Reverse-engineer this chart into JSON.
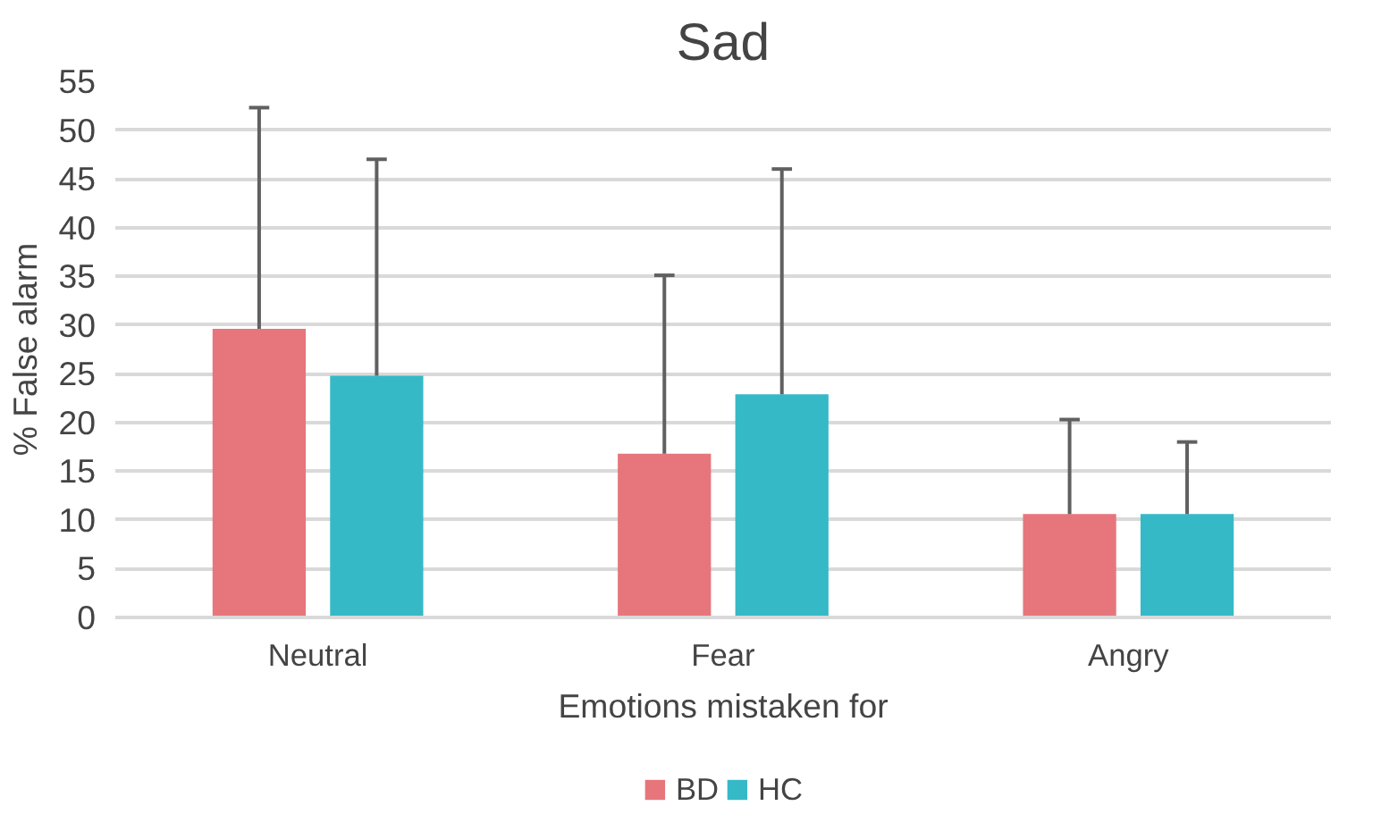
{
  "chart_data": {
    "type": "bar",
    "title": "Sad",
    "xlabel": "Emotions mistaken for",
    "ylabel": "% False alarm",
    "categories": [
      "Neutral",
      "Fear",
      "Angry"
    ],
    "series": [
      {
        "name": "BD",
        "color": "#e6767b",
        "values": [
          29.6,
          16.8,
          10.6
        ],
        "errors": [
          [
            29.6,
            52.3
          ],
          [
            16.8,
            35.1
          ],
          [
            10.6,
            20.3
          ]
        ]
      },
      {
        "name": "HC",
        "color": "#36b9c7",
        "values": [
          24.8,
          22.9,
          10.6
        ],
        "errors": [
          [
            24.8,
            47.0
          ],
          [
            22.9,
            46.0
          ],
          [
            10.6,
            18.0
          ]
        ]
      }
    ],
    "ylim": [
      0,
      55
    ],
    "yticks": [
      0,
      5,
      10,
      15,
      20,
      25,
      30,
      35,
      40,
      45,
      50,
      55
    ],
    "grid": "y",
    "legend": "bottom"
  }
}
